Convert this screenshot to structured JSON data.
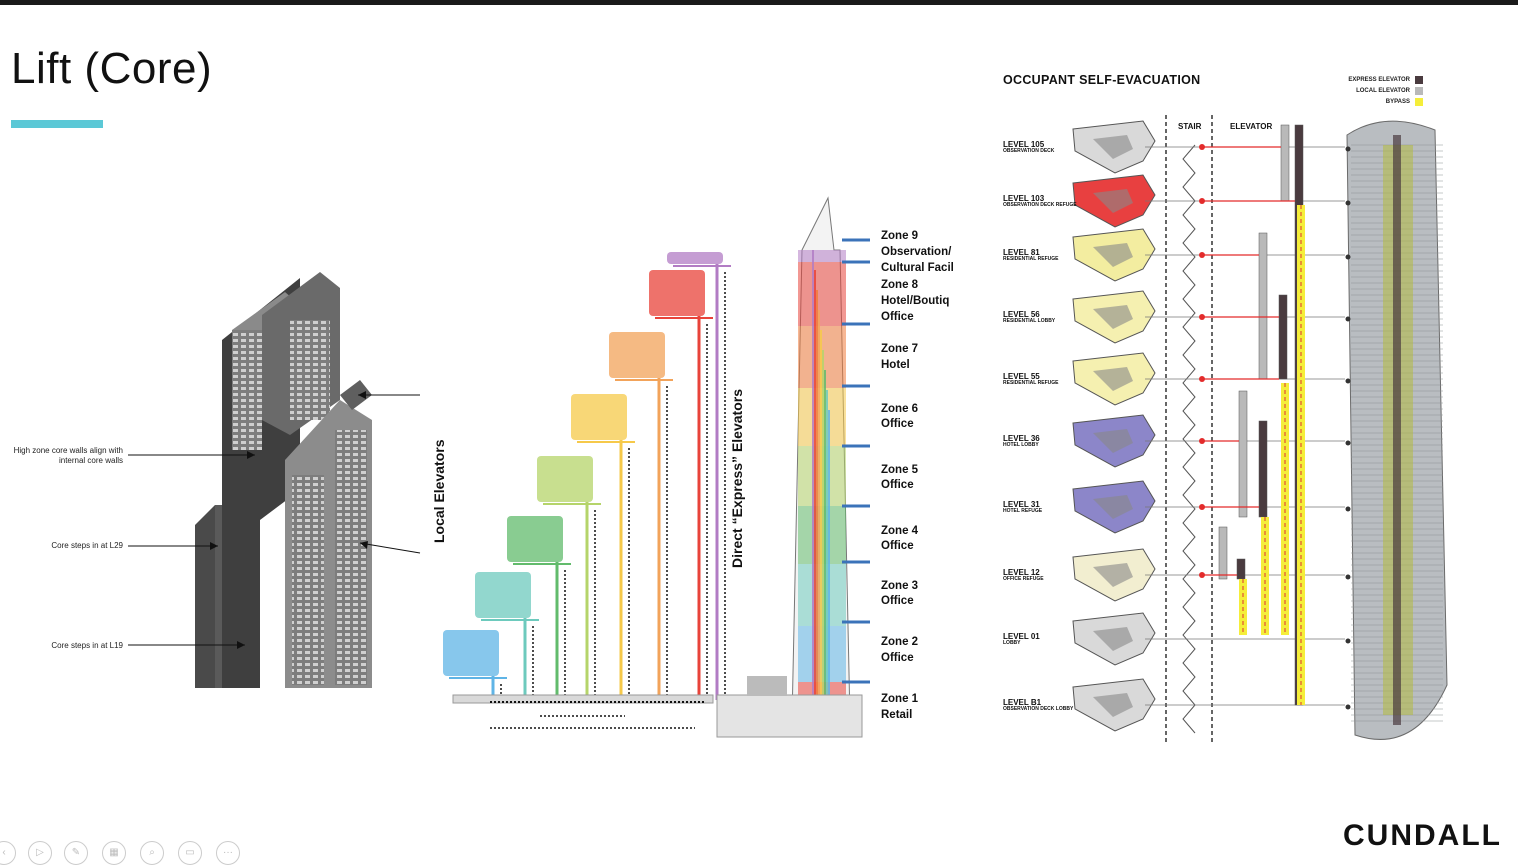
{
  "slide": {
    "title": "Lift (Core)"
  },
  "core_callouts": [
    {
      "text": "High zone core walls align with internal core walls"
    },
    {
      "text": "Core steps in at L29"
    },
    {
      "text": "Core steps in at L19"
    }
  ],
  "elevator_diagram": {
    "local_label": "Local Elevators",
    "express_label": "Direct “Express” Elevators",
    "zones": [
      {
        "name": "Zone 9",
        "use": "Observation/"
      },
      {
        "name": "",
        "use": "Cultural Facil"
      },
      {
        "name": "Zone 8",
        "use": "Hotel/Boutiq"
      },
      {
        "name": "",
        "use": "Office"
      },
      {
        "name": "Zone 7",
        "use": "Hotel"
      },
      {
        "name": "Zone 6",
        "use": "Office"
      },
      {
        "name": "Zone 5",
        "use": "Office"
      },
      {
        "name": "Zone 4",
        "use": "Office"
      },
      {
        "name": "Zone 3",
        "use": "Office"
      },
      {
        "name": "Zone 2",
        "use": "Office"
      },
      {
        "name": "Zone 1",
        "use": "Retail"
      }
    ],
    "zone_colors": [
      "#b27cc4",
      "#e8433a",
      "#f07b3c",
      "#f2a35a",
      "#f6c94a",
      "#b5d46a",
      "#62bb6c",
      "#6dcabd",
      "#5fb4e6"
    ]
  },
  "evacuation": {
    "title": "OCCUPANT SELF-EVACUATION",
    "legend": [
      {
        "label": "EXPRESS ELEVATOR",
        "color": "#4a3b3f"
      },
      {
        "label": "LOCAL ELEVATOR",
        "color": "#b9b9b9"
      },
      {
        "label": "BYPASS",
        "color": "#f5ee3a"
      }
    ],
    "columns": {
      "stair": "STAIR",
      "elevator": "ELEVATOR"
    },
    "levels": [
      {
        "level": "LEVEL 105",
        "desc": "OBSERVATION DECK"
      },
      {
        "level": "LEVEL 103",
        "desc": "OBSERVATION DECK REFUGE"
      },
      {
        "level": "LEVEL 81",
        "desc": "RESIDENTIAL REFUGE"
      },
      {
        "level": "LEVEL 56",
        "desc": "RESIDENTIAL LOBBY"
      },
      {
        "level": "LEVEL 55",
        "desc": "RESIDENTIAL REFUGE"
      },
      {
        "level": "LEVEL 36",
        "desc": "HOTEL LOBBY"
      },
      {
        "level": "LEVEL 31",
        "desc": "HOTEL REFUGE"
      },
      {
        "level": "LEVEL 12",
        "desc": "OFFICE REFUGE"
      },
      {
        "level": "LEVEL 01",
        "desc": "LOBBY"
      },
      {
        "level": "LEVEL B1",
        "desc": "OBSERVATION DECK LOBBY"
      }
    ]
  },
  "footer": {
    "logo": "CUNDALL",
    "toolbar_icons": [
      "prev-icon",
      "play-icon",
      "pen-icon",
      "slides-icon",
      "zoom-icon",
      "subtitle-icon",
      "more-icon"
    ]
  }
}
